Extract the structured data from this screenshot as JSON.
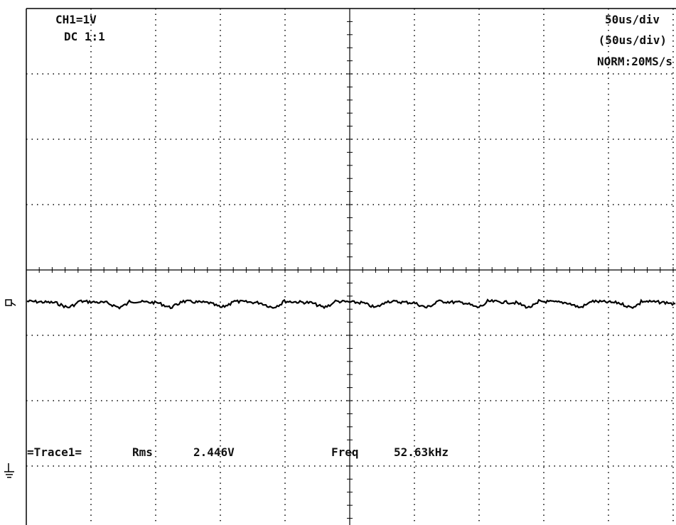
{
  "scope": {
    "channel": {
      "scale": "CH1=1V",
      "coupling": "DC 1:1"
    },
    "timebase": {
      "main": "50us/div",
      "delayed": "(50us/div)",
      "mode": "NORM:20MS/s"
    },
    "measurement": {
      "trace": "=Trace1=",
      "rms_label": "Rms",
      "rms_value": "2.446V",
      "freq_label": "Freq",
      "freq_value": "52.63kHz"
    }
  }
}
